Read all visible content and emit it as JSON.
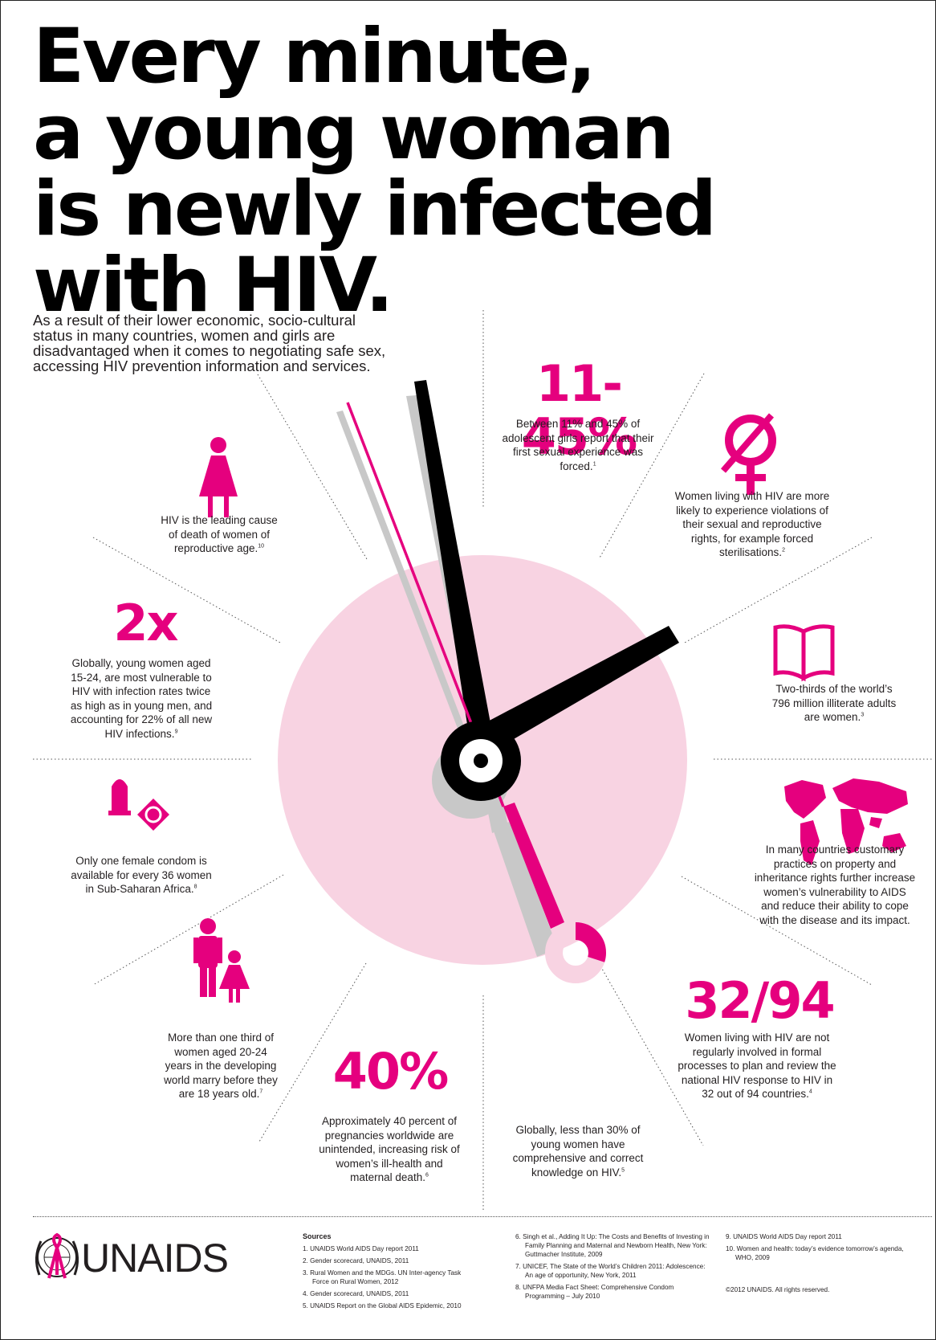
{
  "headline": {
    "line1": "Every minute,",
    "line2": "a young woman",
    "line3": "is newly infected",
    "line4": "with HIV."
  },
  "intro": "As a result of their lower economic, socio-cultural status in many countries, women and girls are disadvantaged when it comes to negotiating safe sex, accessing HIV prevention information and services.",
  "facts": {
    "forced_first_sex": {
      "stat": "11-45%",
      "text": "Between 11% and 45% of adolescent girls report that their first sexual experience was forced.",
      "ref": "1"
    },
    "rights_violations": {
      "icon": "female-symbol-crossed-icon",
      "text": "Women living with HIV are more likely to experience violations of their sexual and reproductive rights, for example forced sterilisations.",
      "ref": "2"
    },
    "illiteracy": {
      "icon": "open-book-icon",
      "text": "Two-thirds of the world’s 796 million illiterate adults are women.",
      "ref": "3"
    },
    "property_rights": {
      "icon": "world-map-icon",
      "text": "In many countries customary practices on property and inheritance rights further increase women’s vulnerability to AIDS and reduce their ability to cope with the disease and its impact."
    },
    "national_response": {
      "stat": "32/94",
      "text": "Women living with HIV are not regularly involved in formal processes to plan and review the national HIV response to HIV in 32 out of 94 countries.",
      "ref": "4"
    },
    "knowledge": {
      "icon": "donut-chart-icon",
      "share_percent": 30,
      "text": "Globally, less than 30% of young women have comprehensive and correct knowledge on HIV.",
      "ref": "5"
    },
    "unintended_pregnancy": {
      "stat": "40%",
      "text": "Approximately 40 percent of pregnancies worldwide are unintended, increasing risk of women’s ill-health and maternal death.",
      "ref": "6"
    },
    "child_marriage": {
      "icon": "woman-and-girl-icon",
      "text": "More than one third of women aged 20-24 years in the developing world marry before they are 18 years old.",
      "ref": "7"
    },
    "female_condom": {
      "icon": "female-condom-icon",
      "text": "Only one female condom is available for every 36 women in Sub-Saharan Africa.",
      "ref": "8"
    },
    "young_women_risk": {
      "stat": "2x",
      "text": "Globally, young women aged 15-24, are most vulnerable to HIV with infection rates twice as high as in young men, and accounting for 22% of all new HIV infections.",
      "ref": "9"
    },
    "leading_cause": {
      "icon": "woman-icon",
      "text": "HIV is the leading cause of death of women of reproductive age.",
      "ref": "10"
    }
  },
  "logo": {
    "text": "UNAIDS",
    "icon": "un-emblem-red-ribbon-icon"
  },
  "sources": {
    "title": "Sources",
    "col1": [
      "1. UNAIDS World AIDS Day report 2011",
      "2. Gender scorecard, UNAIDS, 2011",
      "3. Rural Women and the MDGs. UN Inter-agency Task Force on Rural Women, 2012",
      "4. Gender scorecard, UNAIDS, 2011",
      "5. UNAIDS Report on the Global AIDS Epidemic, 2010"
    ],
    "col2": [
      "6. Singh et al., Adding It Up: The Costs and Benefits of Investing in Family Planning and Maternal and Newborn Health, New York: Guttmacher Institute, 2009",
      "7. UNICEF, The State of the World’s Children 2011: Adolescence: An age of opportunity, New York, 2011",
      "8. UNFPA Media Fact Sheet: Comprehensive Condom Programming – July 2010"
    ],
    "col3": [
      "9. UNAIDS World AIDS Day report 2011",
      "10. Women and health: today’s evidence tomorrow’s agenda, WHO, 2009"
    ],
    "copyright": "©2012 UNAIDS. All rights reserved."
  },
  "colors": {
    "magenta": "#e5007e",
    "pink": "#f8d3e2",
    "black": "#000000",
    "grey": "#c8c8c8"
  }
}
